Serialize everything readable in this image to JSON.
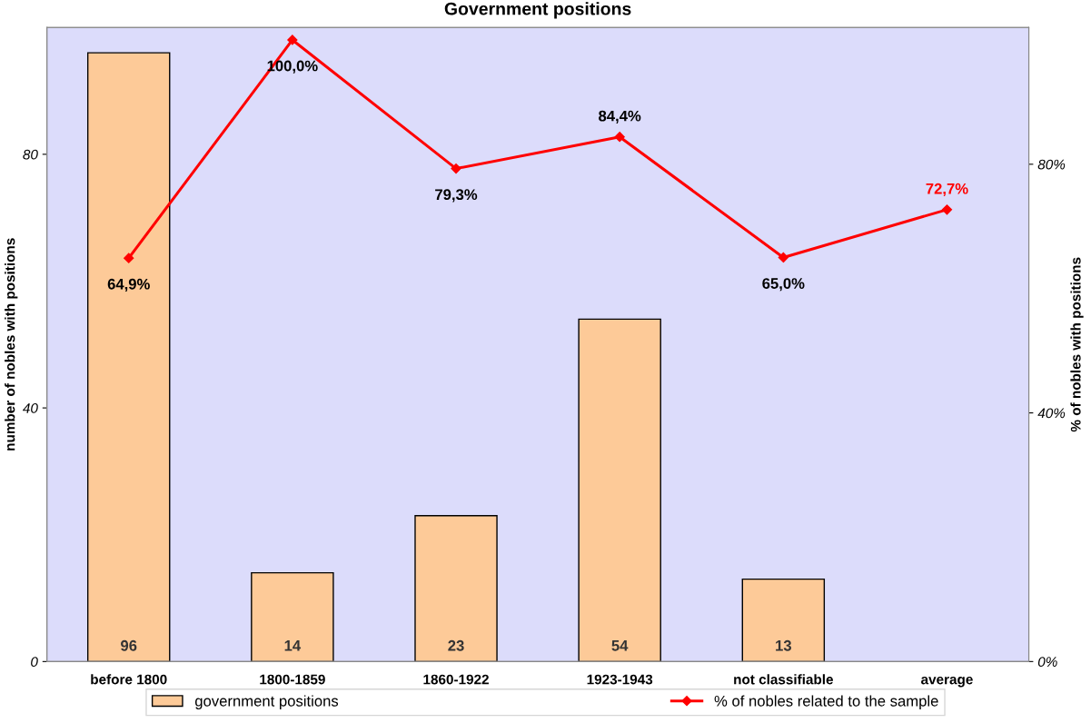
{
  "chart_data": {
    "type": "bar",
    "title": "Government positions",
    "categories": [
      "before 1800",
      "1800-1859",
      "1860-1922",
      "1923-1943",
      "not classifiable",
      "average"
    ],
    "series": [
      {
        "name": "government positions",
        "color": "#fdca98",
        "values": [
          96,
          14,
          23,
          54,
          13,
          null
        ]
      },
      {
        "name": "% of nobles related to the sample",
        "type": "line",
        "axis": "y2",
        "color": "#ff0000",
        "values": [
          64.9,
          100.0,
          79.3,
          84.4,
          65.0,
          72.7
        ],
        "value_labels": [
          "64,9%",
          "100,0%",
          "79,3%",
          "84,4%",
          "65,0%",
          "72,7%"
        ]
      }
    ],
    "data_labels": true,
    "ylabel": "number of nobles with positions",
    "y2label": "% of nobles with positions",
    "ylim": [
      0,
      100
    ],
    "yticks": [
      0,
      40,
      80
    ],
    "y2lim": [
      0,
      102
    ],
    "y2ticks": [
      {
        "value": 0,
        "label": "0%"
      },
      {
        "value": 40,
        "label": "40%"
      },
      {
        "value": 80,
        "label": "80%"
      }
    ],
    "marker": "diamond",
    "grid": false,
    "legend": "bottom"
  }
}
